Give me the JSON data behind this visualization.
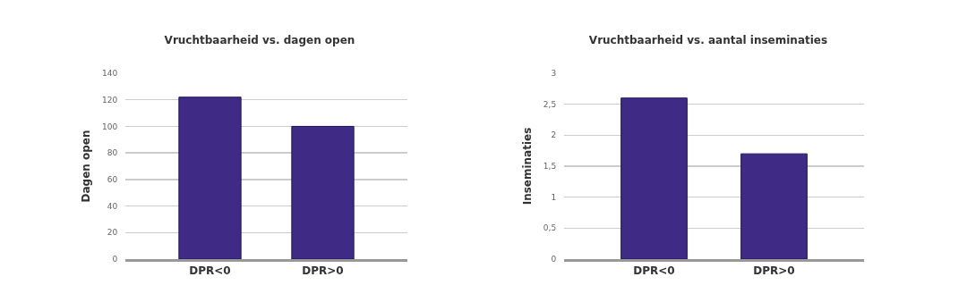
{
  "chart_data": [
    {
      "type": "bar",
      "title": "Vruchtbaarheid vs. dagen open",
      "ylabel": "Dagen open",
      "categories": [
        "DPR<0",
        "DPR>0"
      ],
      "values": [
        122,
        100
      ],
      "color": "#3f2a85",
      "ylim": [
        0,
        140
      ],
      "yticks": [
        0,
        20,
        40,
        60,
        80,
        100,
        120,
        140
      ],
      "grid": "y"
    },
    {
      "type": "bar",
      "title": "Vruchtbaarheid vs. aantal inseminaties",
      "ylabel": "Inseminaties",
      "categories": [
        "DPR<0",
        "DPR>0"
      ],
      "values": [
        2.6,
        1.7
      ],
      "color": "#3f2a85",
      "ylim": [
        0,
        3
      ],
      "yticks": [
        0,
        {
          "value": 0.5,
          "label": "0,5"
        },
        1,
        {
          "value": 1.5,
          "label": "1,5"
        },
        2,
        {
          "value": 2.5,
          "label": "2,5"
        },
        3
      ],
      "grid": "y"
    }
  ]
}
